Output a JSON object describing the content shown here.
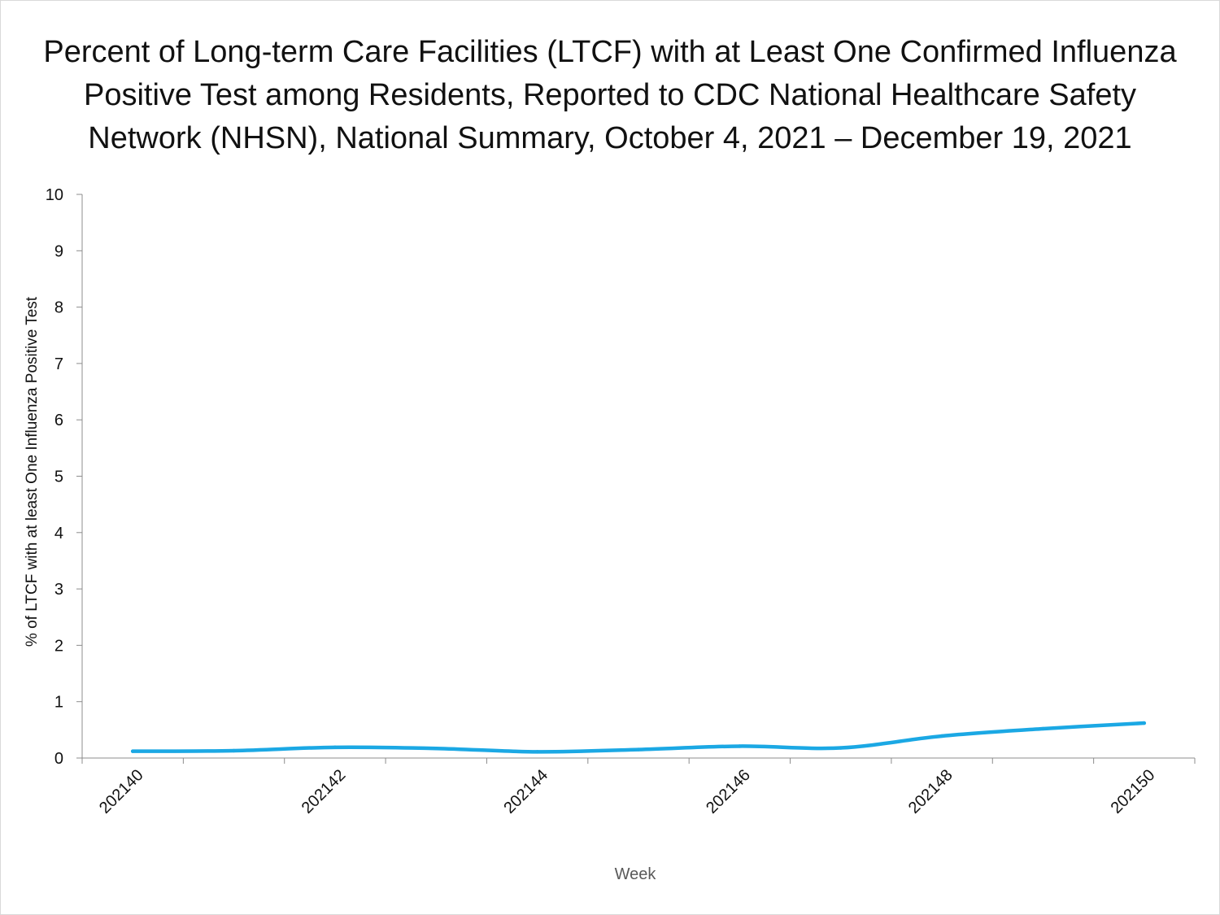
{
  "chart_data": {
    "type": "line",
    "title_lines": [
      "Percent of Long-term Care Facilities (LTCF) with at Least One Confirmed Influenza",
      "Positive Test among Residents, Reported to CDC National Healthcare Safety",
      "Network (NHSN), National Summary, October 4, 2021 – December 19, 2021"
    ],
    "xlabel": "Week",
    "ylabel": "% of LTCF with at least One Influenza Positive Test",
    "ylim": [
      0,
      10
    ],
    "y_ticks": [
      "0",
      "1",
      "2",
      "3",
      "4",
      "5",
      "6",
      "7",
      "8",
      "9",
      "10"
    ],
    "x": [
      "202140",
      "202141",
      "202142",
      "202143",
      "202144",
      "202145",
      "202146",
      "202147",
      "202148",
      "202149",
      "202150"
    ],
    "x_tick_labels": [
      "202140",
      "202142",
      "202144",
      "202146",
      "202148",
      "202150"
    ],
    "series": [
      {
        "values": [
          0.12,
          0.13,
          0.19,
          0.17,
          0.11,
          0.15,
          0.21,
          0.18,
          0.39,
          0.52,
          0.62
        ],
        "color": "#1ba8e4"
      }
    ],
    "grid": false,
    "legend": "none"
  }
}
